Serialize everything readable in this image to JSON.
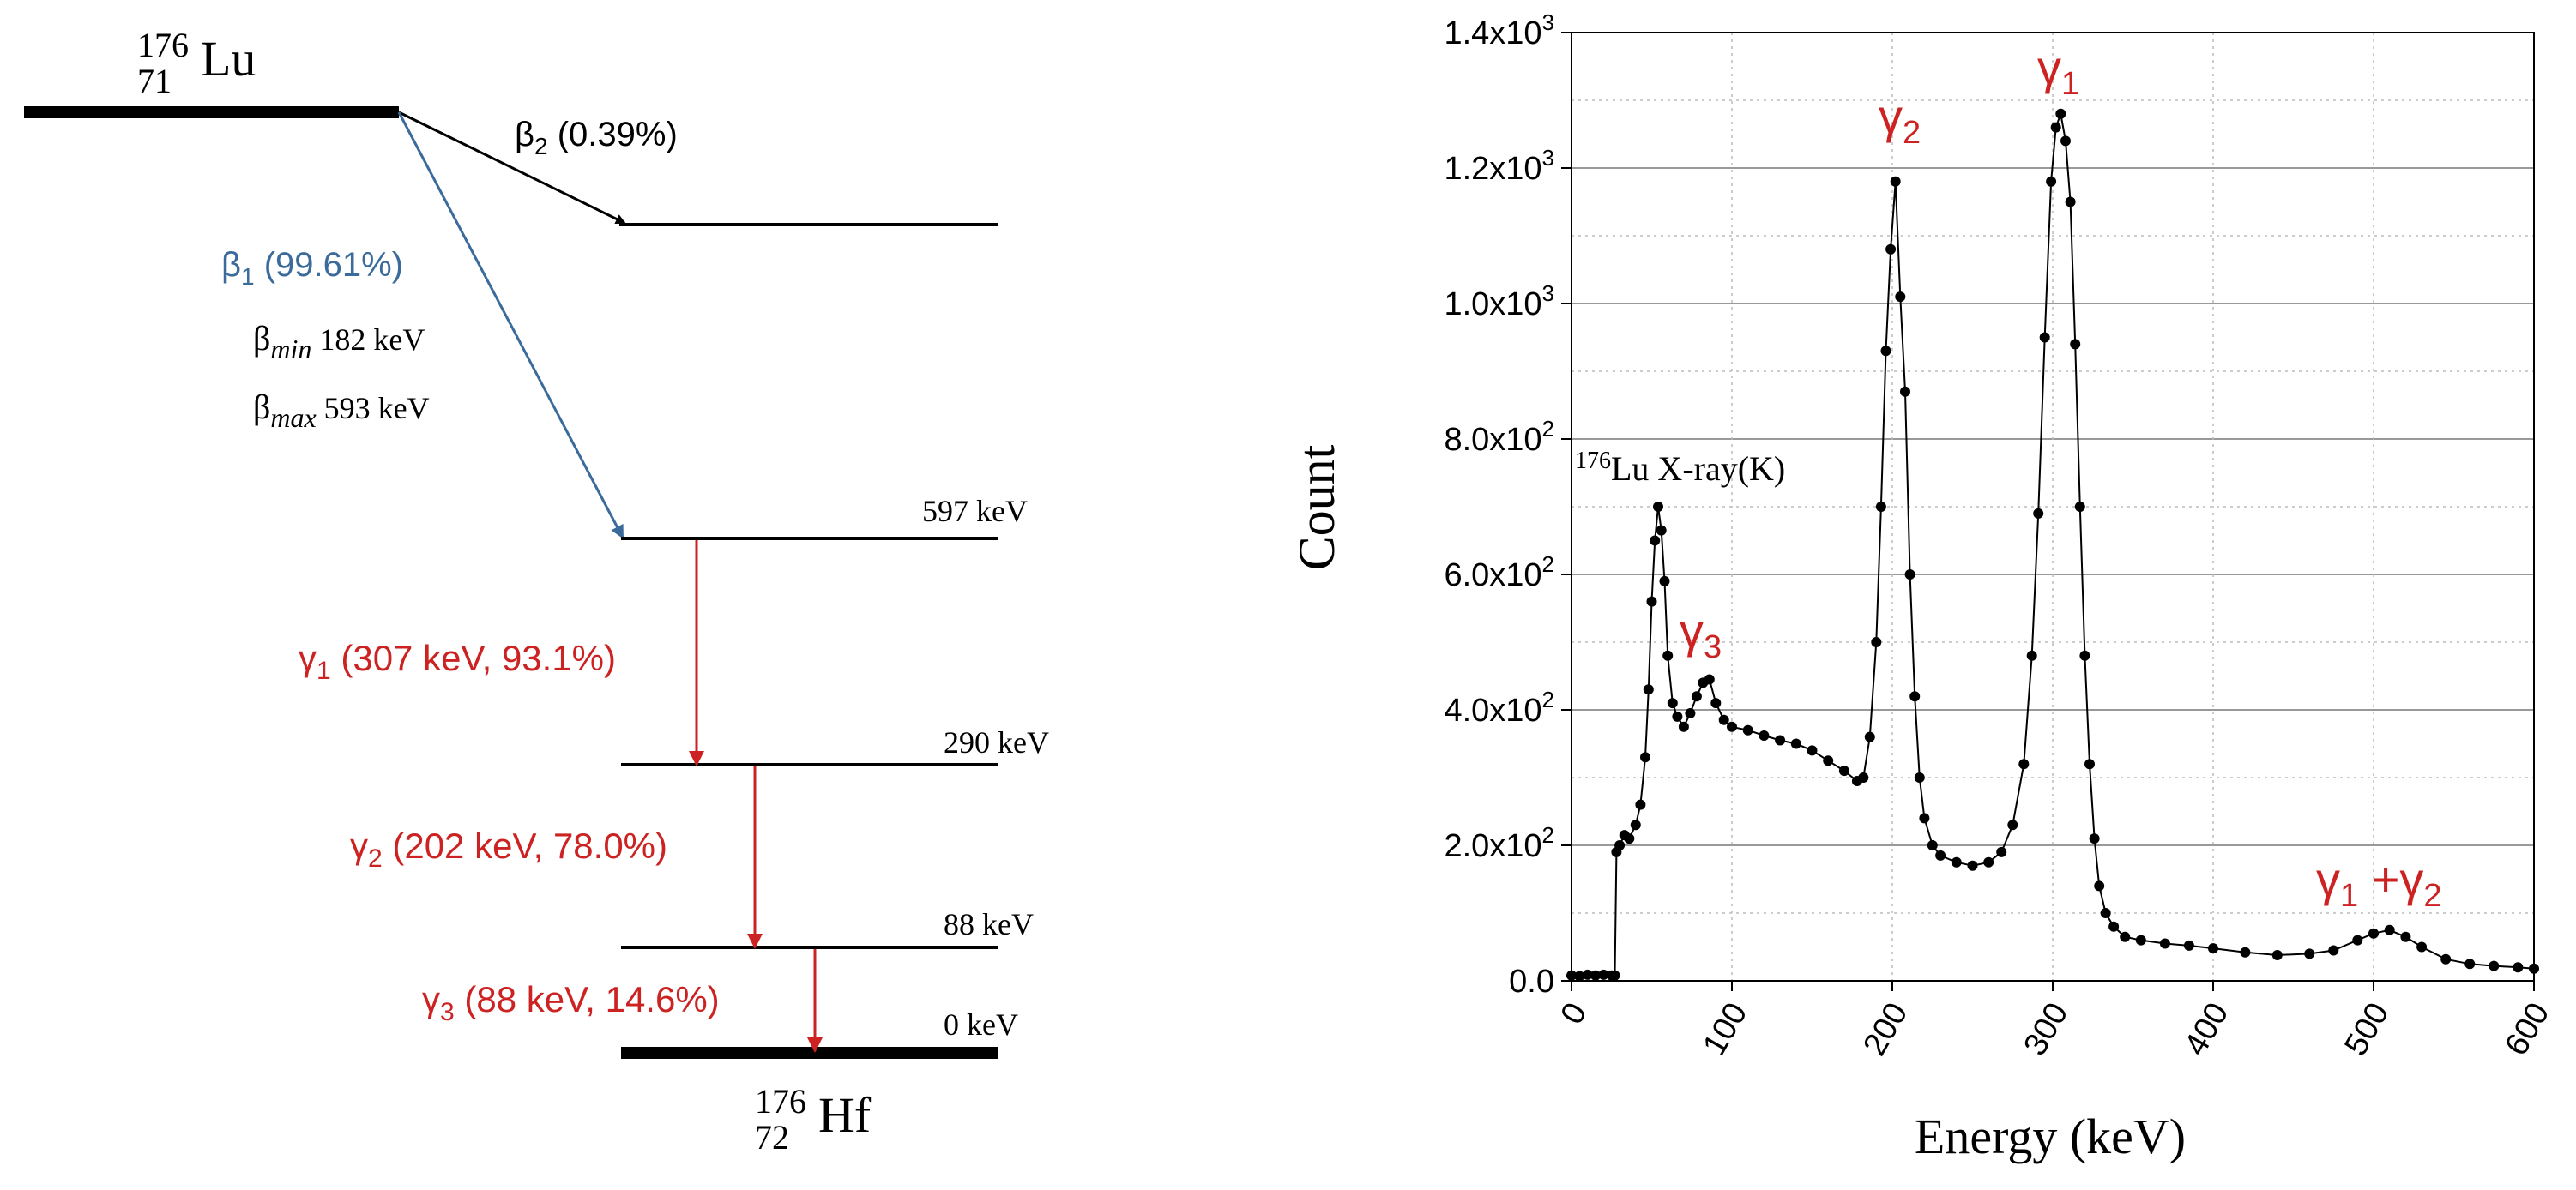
{
  "decay_scheme": {
    "parent": {
      "mass": "176",
      "z": "71",
      "symbol": "Lu"
    },
    "daughter": {
      "mass": "176",
      "z": "72",
      "symbol": "Hf"
    },
    "beta2": {
      "sym": "β",
      "sub": "2",
      "text": " (0.39%)"
    },
    "beta1": {
      "sym": "β",
      "sub": "1",
      "text": " (99.61%)"
    },
    "beta_min": {
      "sym": "β",
      "sub": "min",
      "text": " 182 keV"
    },
    "beta_max": {
      "sym": "β",
      "sub": "max",
      "text": " 593 keV"
    },
    "levels": [
      "597 keV",
      "290 keV",
      "88 keV",
      "0 keV"
    ],
    "gamma1": {
      "sym": "γ",
      "sub": "1",
      "text": " (307 keV, 93.1%)"
    },
    "gamma2": {
      "sym": "γ",
      "sub": "2",
      "text": " (202 keV, 78.0%)"
    },
    "gamma3": {
      "sym": "γ",
      "sub": "3",
      "text": " (88 keV, 14.6%)"
    },
    "colors": {
      "black": "#000000",
      "blue": "#3b6b9a",
      "red": "#cc2222"
    }
  },
  "chart_data": {
    "type": "scatter",
    "xlabel": "Energy (keV)",
    "ylabel": "Count",
    "xlim": [
      0,
      600
    ],
    "ylim": [
      0,
      1400
    ],
    "x_ticks": [
      "0",
      "100",
      "200",
      "300",
      "400",
      "500",
      "600"
    ],
    "y_ticks": [
      {
        "mant": "0.0",
        "exp": ""
      },
      {
        "mant": "2.0x10",
        "exp": "2"
      },
      {
        "mant": "4.0x10",
        "exp": "2"
      },
      {
        "mant": "6.0x10",
        "exp": "2"
      },
      {
        "mant": "8.0x10",
        "exp": "2"
      },
      {
        "mant": "1.0x10",
        "exp": "3"
      },
      {
        "mant": "1.2x10",
        "exp": "3"
      },
      {
        "mant": "1.4x10",
        "exp": "3"
      }
    ],
    "annotations": {
      "xray": {
        "sup": "176",
        "text": "Lu X-ray(K)"
      },
      "g1": {
        "sym": "γ",
        "sub": "1"
      },
      "g2": {
        "sym": "γ",
        "sub": "2"
      },
      "g3": {
        "sym": "γ",
        "sub": "3"
      },
      "sum": {
        "sym1": "γ",
        "sub1": "1",
        "plus": " +",
        "sym2": "γ",
        "sub2": "2"
      }
    },
    "series": [
      {
        "name": "spectrum",
        "points": [
          [
            0,
            8
          ],
          [
            5,
            7
          ],
          [
            10,
            9
          ],
          [
            15,
            8
          ],
          [
            20,
            9
          ],
          [
            25,
            8
          ],
          [
            27,
            8
          ],
          [
            28,
            190
          ],
          [
            30,
            200
          ],
          [
            33,
            215
          ],
          [
            36,
            210
          ],
          [
            40,
            230
          ],
          [
            43,
            260
          ],
          [
            46,
            330
          ],
          [
            48,
            430
          ],
          [
            50,
            560
          ],
          [
            52,
            650
          ],
          [
            54,
            700
          ],
          [
            56,
            665
          ],
          [
            58,
            590
          ],
          [
            60,
            480
          ],
          [
            63,
            410
          ],
          [
            66,
            390
          ],
          [
            70,
            375
          ],
          [
            74,
            395
          ],
          [
            78,
            420
          ],
          [
            82,
            440
          ],
          [
            86,
            445
          ],
          [
            90,
            410
          ],
          [
            95,
            385
          ],
          [
            100,
            375
          ],
          [
            110,
            370
          ],
          [
            120,
            362
          ],
          [
            130,
            355
          ],
          [
            140,
            350
          ],
          [
            150,
            340
          ],
          [
            160,
            325
          ],
          [
            170,
            310
          ],
          [
            178,
            295
          ],
          [
            182,
            300
          ],
          [
            186,
            360
          ],
          [
            190,
            500
          ],
          [
            193,
            700
          ],
          [
            196,
            930
          ],
          [
            199,
            1080
          ],
          [
            202,
            1180
          ],
          [
            205,
            1010
          ],
          [
            208,
            870
          ],
          [
            211,
            600
          ],
          [
            214,
            420
          ],
          [
            217,
            300
          ],
          [
            220,
            240
          ],
          [
            225,
            200
          ],
          [
            230,
            185
          ],
          [
            240,
            175
          ],
          [
            250,
            170
          ],
          [
            260,
            175
          ],
          [
            268,
            190
          ],
          [
            275,
            230
          ],
          [
            282,
            320
          ],
          [
            287,
            480
          ],
          [
            291,
            690
          ],
          [
            295,
            950
          ],
          [
            299,
            1180
          ],
          [
            302,
            1260
          ],
          [
            305,
            1280
          ],
          [
            308,
            1240
          ],
          [
            311,
            1150
          ],
          [
            314,
            940
          ],
          [
            317,
            700
          ],
          [
            320,
            480
          ],
          [
            323,
            320
          ],
          [
            326,
            210
          ],
          [
            329,
            140
          ],
          [
            333,
            100
          ],
          [
            338,
            80
          ],
          [
            345,
            65
          ],
          [
            355,
            60
          ],
          [
            370,
            55
          ],
          [
            385,
            52
          ],
          [
            400,
            48
          ],
          [
            420,
            42
          ],
          [
            440,
            38
          ],
          [
            460,
            40
          ],
          [
            475,
            45
          ],
          [
            490,
            60
          ],
          [
            500,
            70
          ],
          [
            510,
            75
          ],
          [
            520,
            65
          ],
          [
            530,
            50
          ],
          [
            545,
            32
          ],
          [
            560,
            25
          ],
          [
            575,
            22
          ],
          [
            590,
            20
          ],
          [
            600,
            18
          ]
        ]
      }
    ]
  }
}
